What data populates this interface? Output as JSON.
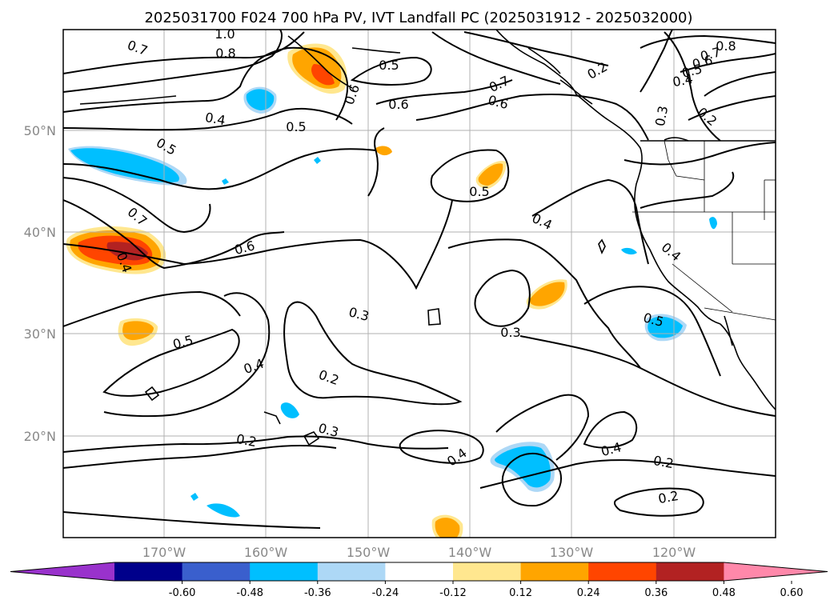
{
  "title": "2025031700 F024 700 hPa PV, IVT Landfall PC (2025031912 - 2025032000)",
  "lon_ticks": [
    "170°W",
    "160°W",
    "150°W",
    "140°W",
    "130°W",
    "120°W"
  ],
  "lat_ticks": [
    "50°N",
    "40°N",
    "30°N",
    "20°N"
  ],
  "colorbar": {
    "ticks": [
      "-0.60",
      "-0.48",
      "-0.36",
      "-0.24",
      "-0.12",
      "0.12",
      "0.24",
      "0.36",
      "0.48",
      "0.60"
    ],
    "colors": [
      "#9932cc",
      "#00008b",
      "#3a5fcd",
      "#00bfff",
      "#add8f6",
      "#ffffff",
      "#ffe78f",
      "#ffa500",
      "#ff4500",
      "#b22222",
      "#ff88aa"
    ]
  },
  "contour_labels": [
    {
      "text": "1.0"
    },
    {
      "text": "0.7"
    },
    {
      "text": "0.8"
    },
    {
      "text": "0.5"
    },
    {
      "text": "0.6"
    },
    {
      "text": "0.4"
    },
    {
      "text": "0.5"
    },
    {
      "text": "0.5"
    },
    {
      "text": "0.6"
    },
    {
      "text": "0.7"
    },
    {
      "text": "0.6"
    },
    {
      "text": "0.2"
    },
    {
      "text": "0.3"
    },
    {
      "text": "0.8"
    },
    {
      "text": "0.7"
    },
    {
      "text": "0.6"
    },
    {
      "text": "0.5"
    },
    {
      "text": "0.4"
    },
    {
      "text": "0.2"
    },
    {
      "text": "0.7"
    },
    {
      "text": "0.4"
    },
    {
      "text": "0.6"
    },
    {
      "text": "0.5"
    },
    {
      "text": "0.4"
    },
    {
      "text": "0.4"
    },
    {
      "text": "0.3"
    },
    {
      "text": "0.3"
    },
    {
      "text": "0.5"
    },
    {
      "text": "0.4"
    },
    {
      "text": "0.2"
    },
    {
      "text": "0.3"
    },
    {
      "text": "0.2"
    },
    {
      "text": "0.4"
    },
    {
      "text": "0.4"
    },
    {
      "text": "0.2"
    },
    {
      "text": "0.2"
    },
    {
      "text": "0.5"
    }
  ]
}
